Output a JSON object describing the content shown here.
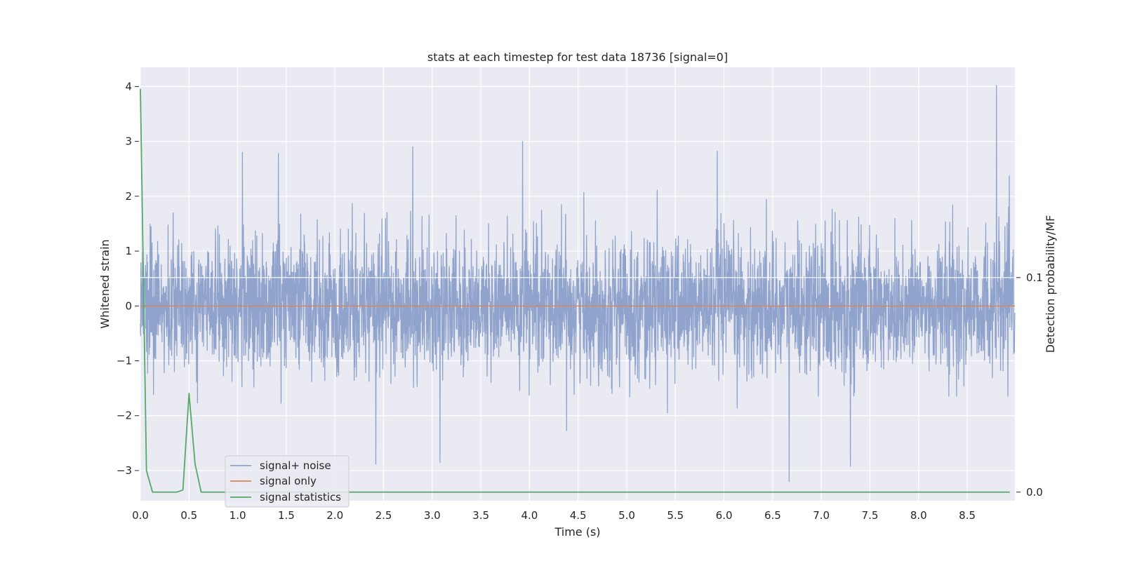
{
  "chart_data": {
    "type": "line",
    "title": "stats at each timestep for test data 18736 [signal=0]",
    "xlabel": "Time (s)",
    "ylabel": "Whitened strain",
    "y2label": "Detection probability/MF",
    "xlim": [
      0,
      8.99
    ],
    "ylim": [
      -3.55,
      4.35
    ],
    "y2lim": [
      -0.004,
      0.198
    ],
    "x_ticks": [
      "0.0",
      "0.5",
      "1.0",
      "1.5",
      "2.0",
      "2.5",
      "3.0",
      "3.5",
      "4.0",
      "4.5",
      "5.0",
      "5.5",
      "6.0",
      "6.5",
      "7.0",
      "7.5",
      "8.0",
      "8.5"
    ],
    "y_ticks": [
      "4",
      "3",
      "2",
      "1",
      "0",
      "−1",
      "−2",
      "−3"
    ],
    "y2_ticks": [
      "0.1",
      "0.0"
    ],
    "grid": true,
    "legend_placement": "lower-left",
    "colors": {
      "signal_noise": "#8fa3cc",
      "signal_only": "#dd8452",
      "signal_statistics": "#55a868",
      "background": "#eaeaf2",
      "grid": "#ffffff"
    },
    "series": [
      {
        "name": "signal+ noise",
        "axis": "left",
        "description_of_values": "dense whitened noise, roughly -3.2 to 4.0",
        "x_range": [
          0,
          8.99
        ],
        "peaks": [
          {
            "x": 1.05,
            "y": 2.8
          },
          {
            "x": 1.42,
            "y": 2.78
          },
          {
            "x": 2.8,
            "y": 2.9
          },
          {
            "x": 3.93,
            "y": 3.0
          },
          {
            "x": 5.93,
            "y": 2.82
          },
          {
            "x": 8.8,
            "y": 4.02
          }
        ],
        "troughs": [
          {
            "x": 2.42,
            "y": -2.88
          },
          {
            "x": 3.08,
            "y": -2.85
          },
          {
            "x": 6.67,
            "y": -3.2
          },
          {
            "x": 7.3,
            "y": -2.92
          }
        ]
      },
      {
        "name": "signal only",
        "axis": "left",
        "x": [
          0,
          8.99
        ],
        "y": [
          0,
          0
        ]
      },
      {
        "name": "signal statistics",
        "axis": "right",
        "x": [
          0.0,
          0.0625,
          0.125,
          0.1875,
          0.25,
          0.3125,
          0.375,
          0.4375,
          0.5,
          0.5625,
          0.625,
          0.6875,
          0.75,
          1.5,
          2.5,
          3.5,
          4.5,
          5.5,
          6.5,
          7.5,
          8.5,
          8.9375
        ],
        "y": [
          0.188,
          0.01,
          0.0,
          0.0,
          0.0,
          0.0,
          0.0,
          0.001,
          0.046,
          0.013,
          0.0,
          0.0,
          0.0,
          0.0,
          0.0,
          0.0,
          0.0,
          0.0,
          0.0,
          0.0,
          0.0,
          0.0
        ]
      }
    ]
  }
}
